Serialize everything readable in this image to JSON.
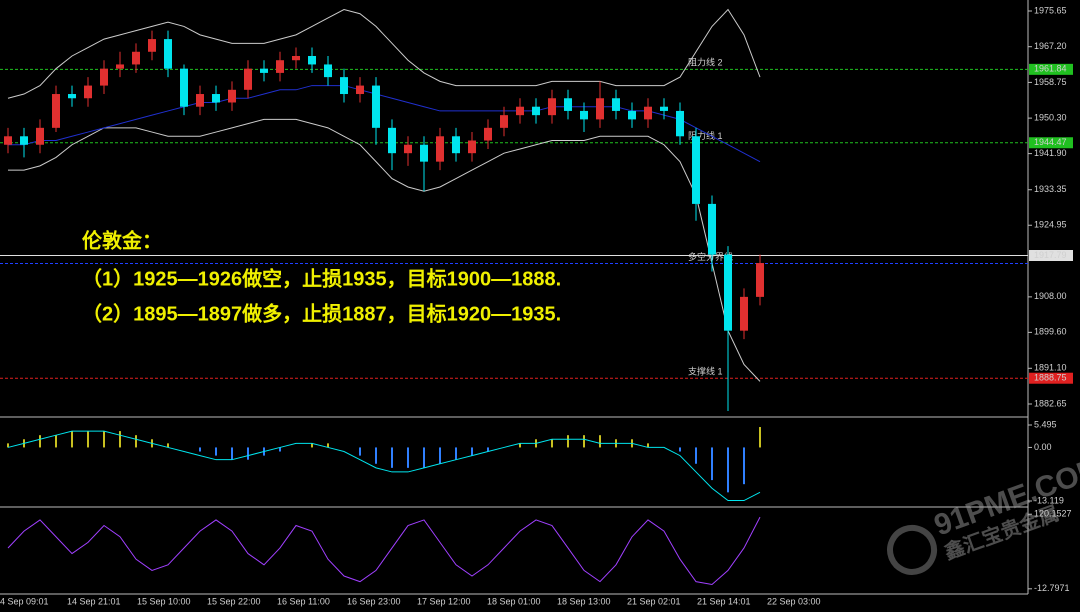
{
  "chart_data": {
    "type": "candlestick",
    "annotations": [
      "伦敦金：",
      "（1）1925—1926做空，止损1935，目标1900—1888.",
      "（2）1895—1897做多，止损1887，目标1920—1935."
    ],
    "watermark": {
      "site": "91PME.COM",
      "name": "鑫汇宝贵金属"
    },
    "xlabels": [
      "4 Sep 09:01",
      "14 Sep 21:01",
      "15 Sep 10:00",
      "15 Sep 22:00",
      "16 Sep 11:00",
      "16 Sep 23:00",
      "17 Sep 12:00",
      "18 Sep 01:00",
      "18 Sep 13:00",
      "21 Sep 02:01",
      "21 Sep 14:01",
      "22 Sep 03:00"
    ],
    "up_color": "#e03030",
    "down_color": "#00e5ee",
    "open": [
      1944,
      1946,
      1944,
      1948,
      1956,
      1955,
      1958,
      1962,
      1963,
      1966,
      1969,
      1962,
      1953,
      1956,
      1954,
      1957,
      1962,
      1961,
      1964,
      1965,
      1963,
      1960,
      1956,
      1958,
      1948,
      1942,
      1944,
      1940,
      1946,
      1942,
      1945,
      1948,
      1951,
      1953,
      1951,
      1955,
      1952,
      1950,
      1955,
      1952,
      1950,
      1953,
      1952,
      1946,
      1930,
      1918,
      1900,
      1908
    ],
    "high": [
      1948,
      1948,
      1950,
      1958,
      1958,
      1960,
      1964,
      1966,
      1968,
      1971,
      1971,
      1963,
      1958,
      1958,
      1959,
      1964,
      1964,
      1966,
      1967,
      1967,
      1965,
      1962,
      1960,
      1960,
      1950,
      1946,
      1946,
      1948,
      1948,
      1947,
      1950,
      1953,
      1955,
      1955,
      1957,
      1957,
      1954,
      1959,
      1957,
      1954,
      1955,
      1955,
      1954,
      1948,
      1932,
      1920,
      1910,
      1918
    ],
    "low": [
      1942,
      1941,
      1942,
      1947,
      1953,
      1953,
      1956,
      1960,
      1961,
      1964,
      1960,
      1951,
      1951,
      1952,
      1952,
      1955,
      1959,
      1959,
      1962,
      1961,
      1958,
      1954,
      1954,
      1944,
      1938,
      1939,
      1933,
      1938,
      1940,
      1940,
      1943,
      1946,
      1949,
      1949,
      1949,
      1950,
      1947,
      1948,
      1950,
      1948,
      1948,
      1950,
      1944,
      1926,
      1914,
      1881,
      1898,
      1906
    ],
    "close": [
      1946,
      1944,
      1948,
      1956,
      1955,
      1958,
      1962,
      1963,
      1966,
      1969,
      1962,
      1953,
      1956,
      1954,
      1957,
      1962,
      1961,
      1964,
      1965,
      1963,
      1960,
      1956,
      1958,
      1948,
      1942,
      1944,
      1940,
      1946,
      1942,
      1945,
      1948,
      1951,
      1953,
      1951,
      1955,
      1952,
      1950,
      1955,
      1952,
      1950,
      1953,
      1952,
      1946,
      1930,
      1918,
      1900,
      1908,
      1916
    ],
    "lines": [
      {
        "color": "#cccccc",
        "values": [
          1955,
          1956,
          1958,
          1962,
          1965,
          1967,
          1969,
          1970,
          1971,
          1972,
          1973,
          1972,
          1970,
          1969,
          1968,
          1968,
          1968,
          1969,
          1970,
          1972,
          1974,
          1976,
          1975,
          1972,
          1968,
          1964,
          1961,
          1959,
          1958,
          1958,
          1958,
          1958,
          1958,
          1958,
          1959,
          1959,
          1959,
          1959,
          1958,
          1958,
          1958,
          1958,
          1960,
          1966,
          1972,
          1976,
          1970,
          1960
        ]
      },
      {
        "color": "#cccccc",
        "values": [
          1938,
          1938,
          1939,
          1941,
          1944,
          1946,
          1948,
          1948,
          1948,
          1947,
          1946,
          1946,
          1946,
          1947,
          1948,
          1949,
          1950,
          1950,
          1950,
          1949,
          1948,
          1946,
          1944,
          1940,
          1936,
          1934,
          1933,
          1934,
          1936,
          1938,
          1940,
          1942,
          1943,
          1944,
          1945,
          1945,
          1945,
          1946,
          1946,
          1946,
          1946,
          1944,
          1940,
          1932,
          1916,
          1900,
          1892,
          1888
        ]
      },
      {
        "color": "#2030d0",
        "values": [
          1944,
          1944,
          1945,
          1945,
          1946,
          1947,
          1948,
          1949,
          1950,
          1951,
          1952,
          1953,
          1954,
          1954,
          1955,
          1955,
          1956,
          1957,
          1957,
          1958,
          1958,
          1958,
          1957,
          1956,
          1955,
          1954,
          1953,
          1952,
          1952,
          1952,
          1952,
          1952,
          1952,
          1952,
          1953,
          1953,
          1953,
          1953,
          1953,
          1952,
          1952,
          1951,
          1950,
          1948,
          1946,
          1944,
          1942,
          1940
        ]
      }
    ],
    "levels": [
      {
        "name": "阻力线 2",
        "value": 1961.84,
        "color": "#20c020",
        "box": true
      },
      {
        "name": "阻力线 1",
        "value": 1944.47,
        "color": "#20c020",
        "box": true
      },
      {
        "value": 1917.79,
        "color": "#e0e0e0",
        "box": true
      },
      {
        "name": "多空分界线",
        "value": 1915.9,
        "color": "#2040ff",
        "box": false
      },
      {
        "name": "支撑线 1",
        "value": 1888.75,
        "color": "#e02020",
        "box": true
      }
    ],
    "ylim": [
      1879.81,
      1978.25
    ],
    "yticks": [
      1975.65,
      {
        "value": 1967.2,
        "label": "1967.20"
      },
      1958.75,
      {
        "value": 1950.3,
        "label": "1950.30"
      },
      {
        "value": 1941.9,
        "label": "1941.90"
      },
      1933.35,
      1924.95,
      {
        "value": 1908,
        "label": "1908.00"
      },
      {
        "value": 1899.6,
        "label": "1899.60"
      },
      {
        "value": 1891.1,
        "label": "1891.10"
      },
      1882.65
    ],
    "macd": {
      "hist_color": "#c8c020",
      "neg_color": "#3080ff",
      "line_color": "#00e5ee",
      "hist": [
        1,
        2,
        3,
        3,
        4,
        4,
        4,
        4,
        3,
        2,
        1,
        0,
        -1,
        -2,
        -3,
        -3,
        -2,
        -1,
        0,
        1,
        1,
        0,
        -2,
        -4,
        -5,
        -5,
        -5,
        -4,
        -3,
        -2,
        -1,
        0,
        1,
        2,
        2,
        3,
        3,
        3,
        2,
        2,
        1,
        0,
        -1,
        -4,
        -8,
        -11,
        -9,
        5
      ],
      "line": [
        0,
        1,
        2,
        3,
        4,
        4,
        4,
        3,
        2,
        1,
        0,
        -1,
        -2,
        -3,
        -3,
        -2,
        -1,
        0,
        1,
        1,
        0,
        -1,
        -3,
        -5,
        -6,
        -6,
        -5,
        -4,
        -3,
        -2,
        -1,
        0,
        1,
        1,
        2,
        2,
        2,
        1,
        1,
        1,
        0,
        0,
        -2,
        -6,
        -10,
        -13,
        -13,
        -11
      ],
      "ylim": [
        -14.1,
        7.21
      ],
      "yticks": [
        5.495,
        {
          "value": 0,
          "label": "0.00"
        },
        -13.119
      ]
    },
    "osc": {
      "color": "#a040ff",
      "values": [
        60,
        90,
        110,
        80,
        50,
        70,
        100,
        80,
        40,
        20,
        30,
        60,
        90,
        110,
        90,
        50,
        30,
        60,
        100,
        90,
        40,
        10,
        0,
        20,
        60,
        100,
        110,
        70,
        30,
        10,
        30,
        60,
        90,
        110,
        100,
        60,
        20,
        0,
        30,
        80,
        110,
        90,
        40,
        0,
        -5,
        20,
        60,
        115
      ],
      "ylim": [
        -22.03,
        131.23
      ],
      "yticks": [
        120.1527,
        -12.7971
      ]
    }
  }
}
